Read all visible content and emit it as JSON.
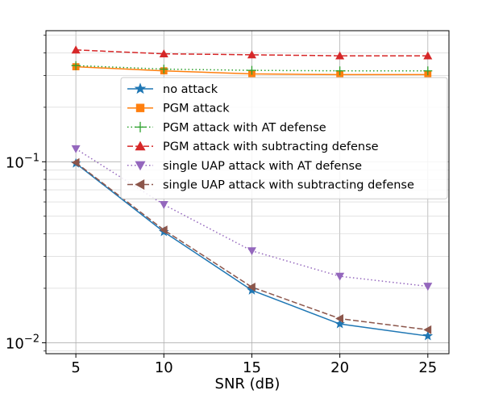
{
  "chart_data": {
    "type": "line",
    "xlabel": "SNR (dB)",
    "ylabel": "",
    "yscale": "log",
    "x": [
      5,
      10,
      15,
      20,
      25
    ],
    "xticks": [
      "5",
      "10",
      "15",
      "20",
      "25"
    ],
    "xlim": [
      3.3,
      26.2
    ],
    "ylim": [
      0.0087,
      0.53
    ],
    "ytick_major": [
      {
        "value": 0.1,
        "base": "10",
        "exp": "−1"
      },
      {
        "value": 0.01,
        "base": "10",
        "exp": "−2"
      }
    ],
    "grid": true,
    "legend_position": "center-right",
    "series": [
      {
        "name": "no attack",
        "color": "#1f77b4",
        "dash": "",
        "marker": "star",
        "values": [
          0.098,
          0.041,
          0.0195,
          0.0127,
          0.0109
        ]
      },
      {
        "name": "PGM attack",
        "color": "#ff7f0e",
        "dash": "",
        "marker": "square",
        "values": [
          0.335,
          0.318,
          0.306,
          0.303,
          0.303
        ]
      },
      {
        "name": "PGM attack with AT defense",
        "color": "#2ca02c",
        "dash": "1.5,3",
        "marker": "plus",
        "values": [
          0.34,
          0.325,
          0.32,
          0.318,
          0.318
        ]
      },
      {
        "name": "PGM attack with subtracting defense",
        "color": "#d62728",
        "dash": "7,3",
        "marker": "triangle-up",
        "values": [
          0.415,
          0.395,
          0.39,
          0.385,
          0.385
        ]
      },
      {
        "name": "single UAP attack with AT defense",
        "color": "#9467bd",
        "dash": "1.5,3",
        "marker": "triangle-down",
        "values": [
          0.118,
          0.058,
          0.0322,
          0.0233,
          0.0205
        ]
      },
      {
        "name": "single UAP attack with subtracting defense",
        "color": "#8c564b",
        "dash": "7,3",
        "marker": "triangle-left",
        "values": [
          0.099,
          0.042,
          0.0203,
          0.0136,
          0.0118
        ]
      }
    ]
  }
}
